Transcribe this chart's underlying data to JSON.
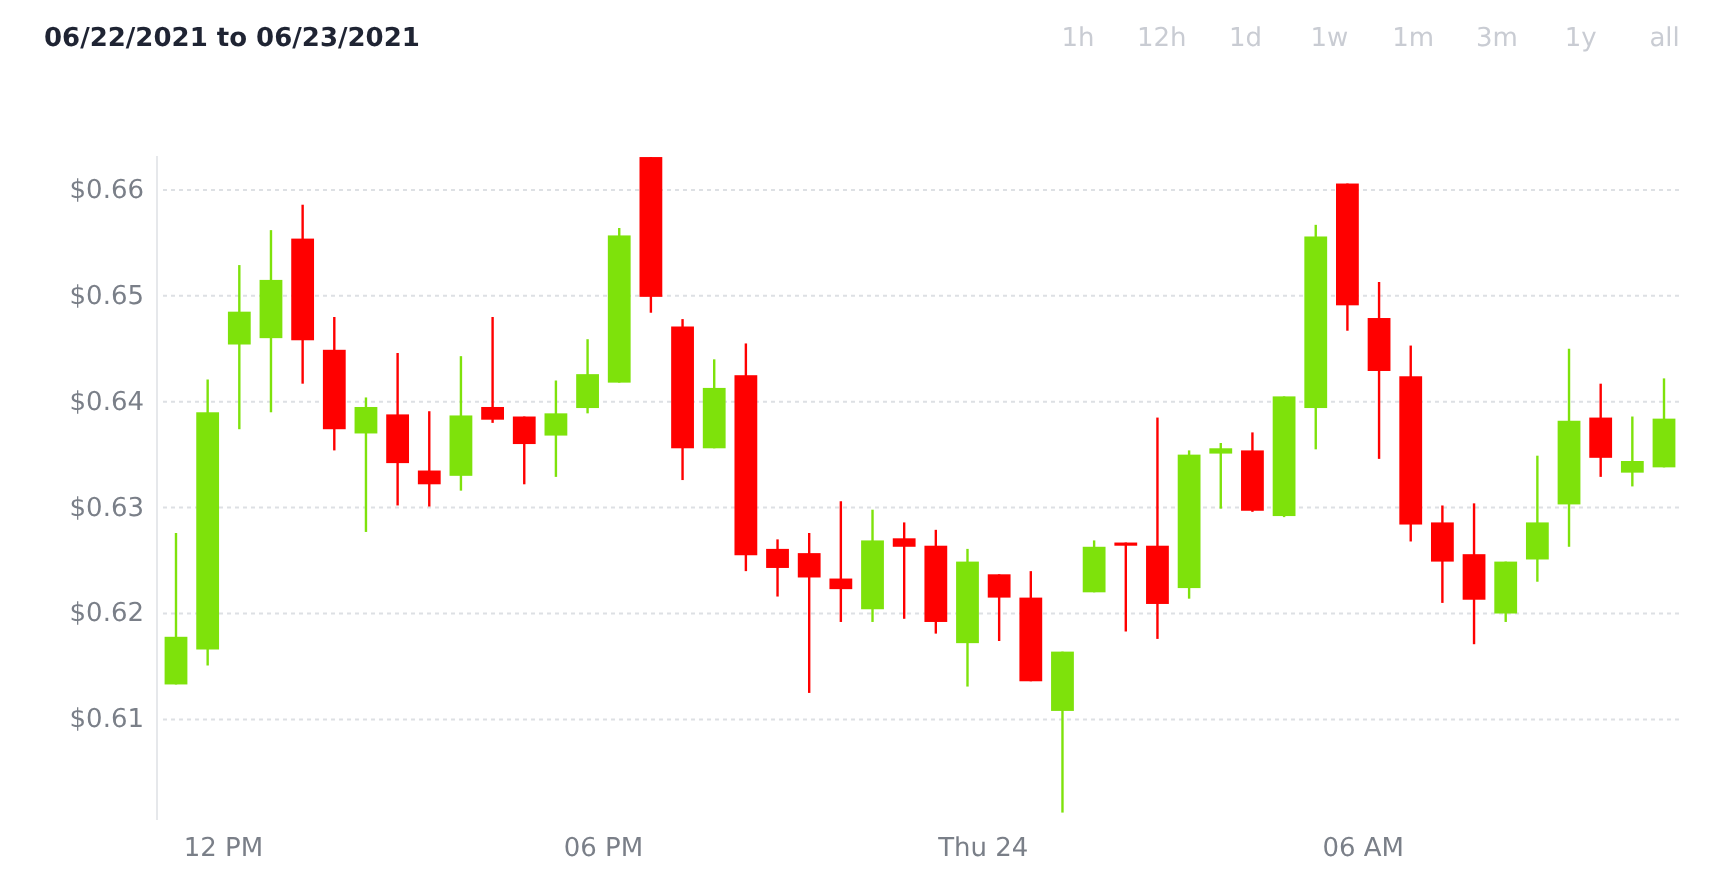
{
  "chart_data": {
    "type": "candlestick",
    "title": "06/22/2021 to 06/23/2021",
    "annotations": [
      "1h",
      "12h",
      "1d",
      "1w",
      "1m",
      "3m",
      "1y",
      "all"
    ],
    "x": [
      "2021-06-23T11:15",
      "2021-06-23T11:45",
      "2021-06-23T12:15",
      "2021-06-23T12:45",
      "2021-06-23T13:15",
      "2021-06-23T13:45",
      "2021-06-23T14:15",
      "2021-06-23T14:45",
      "2021-06-23T15:15",
      "2021-06-23T15:45",
      "2021-06-23T16:15",
      "2021-06-23T16:45",
      "2021-06-23T17:15",
      "2021-06-23T17:45",
      "2021-06-23T18:15",
      "2021-06-23T18:45",
      "2021-06-23T19:15",
      "2021-06-23T19:45",
      "2021-06-23T20:15",
      "2021-06-23T20:45",
      "2021-06-23T21:15",
      "2021-06-23T21:45",
      "2021-06-23T22:15",
      "2021-06-23T22:45",
      "2021-06-23T23:15",
      "2021-06-23T23:45",
      "2021-06-24T00:15",
      "2021-06-24T00:45",
      "2021-06-24T01:15",
      "2021-06-24T01:45",
      "2021-06-24T02:15",
      "2021-06-24T02:45",
      "2021-06-24T03:15",
      "2021-06-24T03:45",
      "2021-06-24T04:15",
      "2021-06-24T04:45",
      "2021-06-24T05:15",
      "2021-06-24T05:45",
      "2021-06-24T06:15",
      "2021-06-24T06:45",
      "2021-06-24T07:15",
      "2021-06-24T07:45",
      "2021-06-24T08:15",
      "2021-06-24T08:45",
      "2021-06-24T09:15",
      "2021-06-24T09:45",
      "2021-06-24T10:15",
      "2021-06-24T10:45"
    ],
    "ohlc": [
      [
        0.6133,
        0.6276,
        0.6133,
        0.6178
      ],
      [
        0.6166,
        0.6421,
        0.6151,
        0.639
      ],
      [
        0.6454,
        0.6529,
        0.6374,
        0.6485
      ],
      [
        0.646,
        0.6562,
        0.639,
        0.6515
      ],
      [
        0.6554,
        0.6586,
        0.6417,
        0.6458
      ],
      [
        0.6449,
        0.648,
        0.6354,
        0.6374
      ],
      [
        0.637,
        0.6404,
        0.6277,
        0.6395
      ],
      [
        0.6388,
        0.6446,
        0.6302,
        0.6342
      ],
      [
        0.6335,
        0.6391,
        0.6301,
        0.6322
      ],
      [
        0.633,
        0.6443,
        0.6316,
        0.6387
      ],
      [
        0.6395,
        0.648,
        0.638,
        0.6383
      ],
      [
        0.6386,
        0.6386,
        0.6322,
        0.636
      ],
      [
        0.6368,
        0.642,
        0.6329,
        0.6389
      ],
      [
        0.6394,
        0.6459,
        0.6389,
        0.6426
      ],
      [
        0.6418,
        0.6564,
        0.6418,
        0.6557
      ],
      [
        0.6631,
        0.6631,
        0.6484,
        0.6499
      ],
      [
        0.6471,
        0.6478,
        0.6326,
        0.6356
      ],
      [
        0.6356,
        0.644,
        0.6356,
        0.6413
      ],
      [
        0.6425,
        0.6455,
        0.624,
        0.6255
      ],
      [
        0.6261,
        0.627,
        0.6216,
        0.6243
      ],
      [
        0.6257,
        0.6276,
        0.6125,
        0.6234
      ],
      [
        0.6233,
        0.6306,
        0.6192,
        0.6223
      ],
      [
        0.6204,
        0.6298,
        0.6192,
        0.6269
      ],
      [
        0.6271,
        0.6286,
        0.6195,
        0.6263
      ],
      [
        0.6264,
        0.6279,
        0.6181,
        0.6192
      ],
      [
        0.6172,
        0.6261,
        0.6131,
        0.6249
      ],
      [
        0.6237,
        0.6237,
        0.6174,
        0.6215
      ],
      [
        0.6215,
        0.624,
        0.6136,
        0.6136
      ],
      [
        0.6108,
        0.6164,
        0.6012,
        0.6164
      ],
      [
        0.622,
        0.6269,
        0.622,
        0.6263
      ],
      [
        0.6267,
        0.6267,
        0.6183,
        0.6264
      ],
      [
        0.6264,
        0.6385,
        0.6176,
        0.6209
      ],
      [
        0.6224,
        0.6354,
        0.6214,
        0.635
      ],
      [
        0.6351,
        0.6361,
        0.6299,
        0.6356
      ],
      [
        0.6354,
        0.6371,
        0.6296,
        0.6297
      ],
      [
        0.6292,
        0.6405,
        0.6291,
        0.6405
      ],
      [
        0.6394,
        0.6567,
        0.6355,
        0.6556
      ],
      [
        0.6606,
        0.6606,
        0.6467,
        0.6491
      ],
      [
        0.6479,
        0.6513,
        0.6346,
        0.6429
      ],
      [
        0.6424,
        0.6453,
        0.6268,
        0.6284
      ],
      [
        0.6286,
        0.6302,
        0.621,
        0.6249
      ],
      [
        0.6256,
        0.6304,
        0.6171,
        0.6213
      ],
      [
        0.62,
        0.6249,
        0.6192,
        0.6249
      ],
      [
        0.6251,
        0.6349,
        0.623,
        0.6286
      ],
      [
        0.6303,
        0.645,
        0.6263,
        0.6382
      ],
      [
        0.6385,
        0.6417,
        0.6329,
        0.6347
      ],
      [
        0.6333,
        0.6386,
        0.632,
        0.6344
      ],
      [
        0.6338,
        0.6422,
        0.6338,
        0.6384
      ]
    ],
    "colors": [
      "#7ee20b",
      "#7ee20b",
      "#7ee20b",
      "#7ee20b",
      "#ff0000",
      "#ff0000",
      "#7ee20b",
      "#ff0000",
      "#ff0000",
      "#7ee20b",
      "#ff0000",
      "#ff0000",
      "#7ee20b",
      "#7ee20b",
      "#7ee20b",
      "#ff0000",
      "#ff0000",
      "#7ee20b",
      "#ff0000",
      "#ff0000",
      "#ff0000",
      "#ff0000",
      "#7ee20b",
      "#ff0000",
      "#ff0000",
      "#7ee20b",
      "#ff0000",
      "#ff0000",
      "#7ee20b",
      "#7ee20b",
      "#ff0000",
      "#ff0000",
      "#7ee20b",
      "#7ee20b",
      "#ff0000",
      "#7ee20b",
      "#7ee20b",
      "#ff0000",
      "#ff0000",
      "#ff0000",
      "#ff0000",
      "#ff0000",
      "#7ee20b",
      "#7ee20b",
      "#7ee20b",
      "#ff0000",
      "#7ee20b",
      "#7ee20b"
    ],
    "xlim": [
      "2021-06-23T10:57",
      "2021-06-24T11:03"
    ],
    "xticks": [
      {
        "value": "2021-06-23T12:00",
        "label": "12 PM"
      },
      {
        "value": "2021-06-23T18:00",
        "label": "06 PM"
      },
      {
        "value": "2021-06-24T00:00",
        "label": "Thu 24"
      },
      {
        "value": "2021-06-24T06:00",
        "label": "06 AM"
      }
    ],
    "ylim": [
      0.6005,
      0.6632
    ],
    "yticks": [
      {
        "value": 0.61,
        "label": "$0.61"
      },
      {
        "value": 0.62,
        "label": "$0.62"
      },
      {
        "value": 0.63,
        "label": "$0.63"
      },
      {
        "value": 0.64,
        "label": "$0.64"
      },
      {
        "value": 0.65,
        "label": "$0.65"
      },
      {
        "value": 0.66,
        "label": "$0.66"
      }
    ],
    "grid": "y"
  }
}
